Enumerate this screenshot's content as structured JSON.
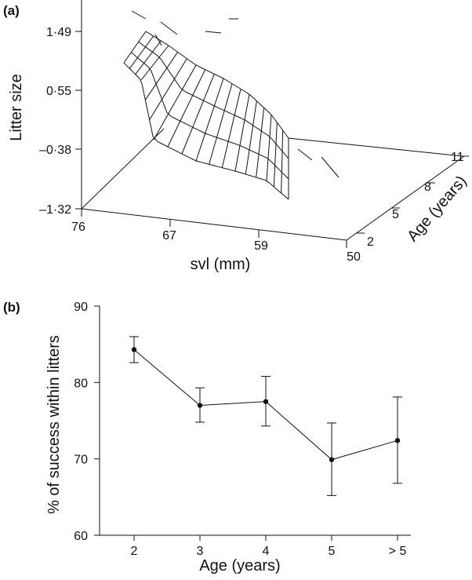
{
  "chart_data": [
    {
      "panel": "(a)",
      "type": "surface",
      "zlabel": "Litter size",
      "xlabel": "svl (mm)",
      "ylabel": "Age (years)",
      "zticks": [
        "1·49",
        "0·55",
        "–0·38",
        "–1·32"
      ],
      "xticks": [
        "76",
        "67",
        "59",
        "50"
      ],
      "yticks": [
        "2",
        "5",
        "8",
        "11"
      ],
      "zlim": [
        -1.32,
        1.49
      ],
      "xlim": [
        50,
        76
      ],
      "ylim": [
        2,
        11
      ]
    },
    {
      "panel": "(b)",
      "type": "line",
      "xlabel": "Age (years)",
      "ylabel": "% of success within litters",
      "categories": [
        "2",
        "3",
        "4",
        "5",
        "> 5"
      ],
      "values": [
        84.3,
        77.0,
        77.5,
        69.9,
        72.4
      ],
      "error_upper": [
        86.0,
        79.3,
        80.8,
        74.7,
        78.1
      ],
      "error_lower": [
        82.6,
        74.8,
        74.3,
        65.2,
        66.8
      ],
      "yticks": [
        "60",
        "70",
        "80",
        "90"
      ],
      "ylim": [
        60,
        90
      ]
    }
  ]
}
